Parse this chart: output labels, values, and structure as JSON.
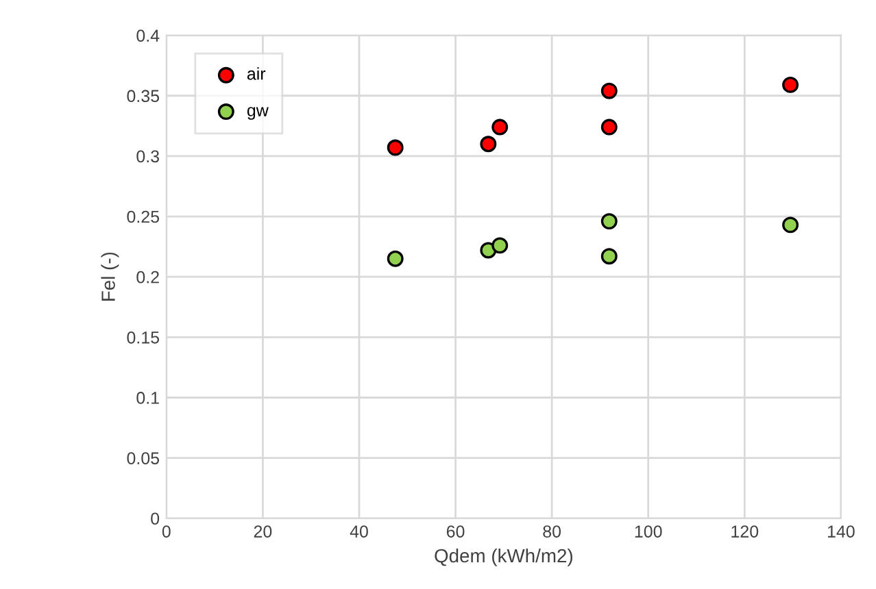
{
  "chart_data": {
    "type": "scatter",
    "xlabel": "Qdem (kWh/m2)",
    "ylabel": "Fel (-)",
    "x": [
      47.5,
      66.8,
      69.2,
      91.9,
      91.9,
      129.5
    ],
    "series": [
      {
        "name": "air",
        "color": "#ff0000",
        "values": [
          0.307,
          0.31,
          0.324,
          0.354,
          0.324,
          0.359
        ]
      },
      {
        "name": "gw",
        "color": "#92d050",
        "values": [
          0.215,
          0.222,
          0.226,
          0.217,
          0.246,
          0.243
        ]
      }
    ],
    "xlim": [
      0,
      140
    ],
    "xticks": [
      0,
      20,
      40,
      60,
      80,
      100,
      120,
      140
    ],
    "ylim": [
      0,
      0.4
    ],
    "yticks": [
      0,
      0.05,
      0.1,
      0.15,
      0.2,
      0.25,
      0.3,
      0.35,
      0.4
    ],
    "grid": true,
    "legend": "top left",
    "marker": "circle"
  }
}
